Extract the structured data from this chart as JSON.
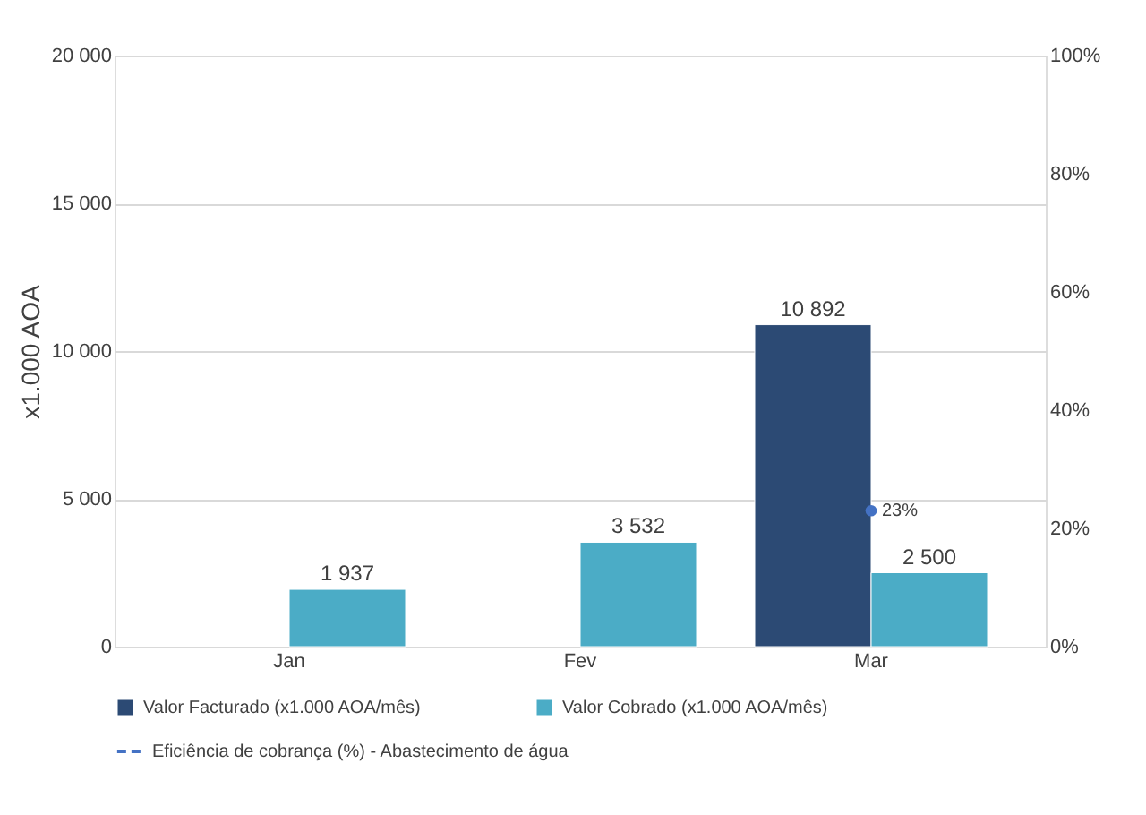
{
  "chart_data": {
    "type": "bar",
    "ylabel": "x1.000 AOA",
    "categories": [
      "Jan",
      "Fev",
      "Mar"
    ],
    "series": [
      {
        "name": "Valor Facturado (x1.000 AOA/mês)",
        "color": "#2c4a74",
        "values": [
          null,
          null,
          10892
        ],
        "value_labels": [
          null,
          null,
          "10 892"
        ]
      },
      {
        "name": "Valor Cobrado (x1.000 AOA/mês)",
        "color": "#4bacc6",
        "values": [
          1937,
          3532,
          2500
        ],
        "value_labels": [
          "1 937",
          "3 532",
          "2 500"
        ]
      },
      {
        "name": "Eficiência de cobrança (%) - Abastecimento de água",
        "type": "line",
        "axis": "y2",
        "color": "#4472c4",
        "marker": "circle",
        "line_style": "dashed",
        "values": [
          null,
          null,
          23
        ],
        "value_labels": [
          null,
          null,
          "23%"
        ]
      }
    ],
    "ylim": [
      0,
      20000
    ],
    "yticks": [
      {
        "value": 0,
        "label": "0"
      },
      {
        "value": 5000,
        "label": "5 000"
      },
      {
        "value": 10000,
        "label": "10 000"
      },
      {
        "value": 15000,
        "label": "15 000"
      },
      {
        "value": 20000,
        "label": "20 000"
      }
    ],
    "y2lim": [
      0,
      100
    ],
    "y2ticks": [
      {
        "value": 0,
        "label": "0%"
      },
      {
        "value": 20,
        "label": "20%"
      },
      {
        "value": 40,
        "label": "40%"
      },
      {
        "value": 60,
        "label": "60%"
      },
      {
        "value": 80,
        "label": "80%"
      },
      {
        "value": 100,
        "label": "100%"
      }
    ],
    "grid": "y",
    "legend": "bottom"
  }
}
